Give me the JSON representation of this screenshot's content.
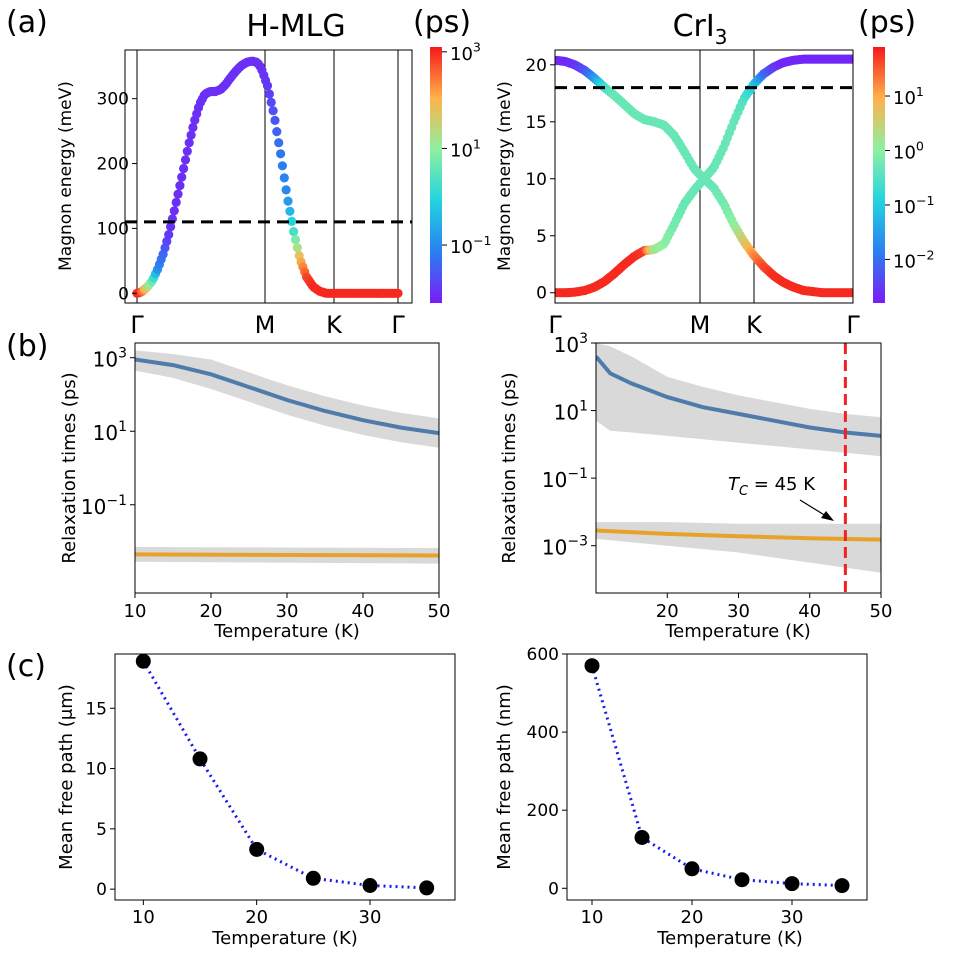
{
  "panel_labels": {
    "a": "(a)",
    "b": "(b)",
    "c": "(c)"
  },
  "colorbar_units": {
    "left": "(ps)",
    "right": "(ps)"
  },
  "colors": {
    "blue_series": "#4f7bab",
    "orange_series": "#e8a22c",
    "band": "#c9c9c9",
    "tc_line": "#ee2222",
    "mfp_line": "#1a1aee",
    "mfp_marker": "#000000",
    "dashed": "#000000"
  },
  "chart_data": [
    {
      "id": "a-left",
      "type": "scatter",
      "title": "H-MLG",
      "xlabel": "",
      "ylabel": "Magnon energy (meV)",
      "ylim": [
        -15,
        375
      ],
      "xticks": [
        "Γ",
        "M",
        "K",
        "Γ"
      ],
      "yticks": [
        0,
        100,
        200,
        300
      ],
      "dashed_line_y": 110,
      "colorbar": {
        "scale": "log",
        "label": "(ps)",
        "ticks": [
          "10^3",
          "10^1",
          "10^-1"
        ],
        "min_exp": -2.2,
        "max_exp": 3.1
      },
      "series": [
        {
          "name": "magnon band",
          "x": [
            0,
            0.02,
            0.04,
            0.08,
            0.12,
            0.16,
            0.2,
            0.24,
            0.28,
            0.32,
            0.36,
            0.4,
            0.44,
            0.48,
            0.52,
            0.56,
            0.6,
            0.64,
            0.68,
            0.72,
            0.76,
            0.8,
            0.84,
            0.88,
            0.92,
            0.95,
            1.0,
            1.05,
            1.1,
            1.15,
            1.2,
            1.25,
            1.3,
            1.35,
            1.4,
            1.45,
            1.5,
            1.55,
            1.58,
            1.62,
            1.66,
            1.7,
            1.74,
            1.78,
            1.82,
            1.86,
            1.9,
            1.93,
            1.96,
            1.99,
            2.0
          ],
          "y": [
            0,
            1,
            3,
            10,
            20,
            38,
            60,
            88,
            122,
            158,
            195,
            232,
            265,
            292,
            307,
            311,
            311,
            314,
            322,
            333,
            343,
            351,
            356,
            358,
            356,
            348,
            320,
            275,
            215,
            150,
            95,
            52,
            25,
            10,
            3,
            0,
            0,
            0,
            0,
            0,
            0,
            0,
            0,
            0,
            0,
            0,
            0,
            0,
            0,
            0,
            0
          ],
          "log_tau": [
            3,
            3,
            2.5,
            1.5,
            0.5,
            -1,
            -1.4,
            -1.9,
            -2,
            -2,
            -2,
            -2,
            -2,
            -2,
            -2,
            -2,
            -2,
            -2,
            -2,
            -2,
            -2,
            -2,
            -2,
            -2,
            -2,
            -2,
            -1.9,
            -1.6,
            -1.2,
            -1.0,
            0.3,
            2,
            2.8,
            3,
            3,
            3,
            3,
            3,
            3,
            3,
            3,
            3,
            3,
            3,
            3,
            3,
            3,
            3,
            3,
            3,
            3
          ]
        }
      ]
    },
    {
      "id": "a-right",
      "type": "scatter",
      "title": "CrI",
      "title_sub": "3",
      "xlabel": "",
      "ylabel": "Magnon energy (meV)",
      "ylim": [
        -0.9,
        21.3
      ],
      "xticks": [
        "Γ",
        "M",
        "K",
        "Γ"
      ],
      "yticks": [
        0,
        5,
        10,
        15,
        20
      ],
      "dashed_line_y": 18,
      "colorbar": {
        "scale": "log",
        "label": "(ps)",
        "ticks": [
          "10^1",
          "10^0",
          "10^-1",
          "10^-2"
        ],
        "min_exp": -2.8,
        "max_exp": 1.9
      },
      "series": [
        {
          "name": "upper branch",
          "x": [
            0,
            0.1,
            0.2,
            0.3,
            0.4,
            0.5,
            0.6,
            0.7,
            0.8,
            0.9,
            1.0,
            1.1,
            1.2,
            1.3,
            1.4,
            1.5,
            1.6,
            1.7,
            1.8,
            1.9,
            2.0,
            2.1,
            2.2,
            2.3,
            2.4,
            2.5,
            2.6,
            2.7,
            2.8,
            2.9,
            3.0
          ],
          "y": [
            20.4,
            20.3,
            20.0,
            19.5,
            18.8,
            18.0,
            17.3,
            16.5,
            15.7,
            15.2,
            15.0,
            14.7,
            13.8,
            12.4,
            10.9,
            10.0,
            9.2,
            7.8,
            6.0,
            4.5,
            3.3,
            2.3,
            1.5,
            0.9,
            0.5,
            0.2,
            0.1,
            0,
            0,
            0,
            0
          ],
          "log_tau": [
            -2.7,
            -2.7,
            -2.6,
            -2.3,
            -1.6,
            -0.6,
            -0.3,
            -0.3,
            -0.3,
            -0.3,
            -0.3,
            -0.3,
            -0.3,
            -0.3,
            -0.3,
            -0.3,
            -0.3,
            -0.2,
            0,
            0.6,
            1.2,
            1.6,
            1.8,
            1.8,
            1.8,
            1.8,
            1.8,
            1.8,
            1.8,
            1.8,
            1.8
          ]
        },
        {
          "name": "lower branch",
          "x": [
            0,
            0.1,
            0.2,
            0.3,
            0.4,
            0.5,
            0.6,
            0.7,
            0.8,
            0.9,
            1.0,
            1.1,
            1.2,
            1.3,
            1.4,
            1.5,
            1.6,
            1.7,
            1.8,
            1.9,
            2.0,
            2.1,
            2.2,
            2.3,
            2.4,
            2.5,
            2.6,
            2.7,
            2.8,
            2.9,
            3.0
          ],
          "y": [
            0,
            0,
            0.05,
            0.2,
            0.5,
            1.0,
            1.7,
            2.5,
            3.2,
            3.7,
            3.8,
            4.3,
            6.0,
            7.8,
            9.0,
            10.0,
            11.0,
            12.8,
            15.0,
            17.0,
            18.3,
            19.2,
            19.8,
            20.2,
            20.4,
            20.5,
            20.5,
            20.5,
            20.5,
            20.5,
            20.5
          ],
          "log_tau": [
            1.8,
            1.8,
            1.8,
            1.8,
            1.8,
            1.8,
            1.8,
            1.8,
            1.8,
            1.7,
            0.2,
            0,
            -0.2,
            -0.3,
            -0.3,
            -0.3,
            -0.3,
            -0.3,
            -0.3,
            -0.5,
            -1.0,
            -2.0,
            -2.5,
            -2.7,
            -2.7,
            -2.7,
            -2.7,
            -2.7,
            -2.7,
            -2.7,
            -2.7
          ]
        }
      ]
    },
    {
      "id": "b-left",
      "type": "line",
      "xlabel": "Temperature (K)",
      "ylabel": "Relaxation times (ps)",
      "xlim": [
        10,
        50
      ],
      "ylim_log10": [
        -3.4,
        3.4
      ],
      "xticks": [
        10,
        20,
        30,
        40,
        50
      ],
      "yticks": [
        "10^3",
        "10^1",
        "10^-1"
      ],
      "series": [
        {
          "name": "blue",
          "x": [
            10,
            15,
            20,
            25,
            30,
            35,
            40,
            45,
            50
          ],
          "log_y": [
            2.95,
            2.8,
            2.55,
            2.2,
            1.85,
            1.55,
            1.3,
            1.1,
            0.95
          ],
          "log_lo": [
            2.65,
            2.45,
            2.15,
            1.8,
            1.45,
            1.15,
            0.9,
            0.7,
            0.55
          ],
          "log_hi": [
            3.2,
            3.1,
            2.95,
            2.6,
            2.25,
            1.95,
            1.7,
            1.5,
            1.35
          ]
        },
        {
          "name": "orange",
          "x": [
            10,
            50
          ],
          "log_y": [
            -2.35,
            -2.38
          ],
          "log_lo": [
            -2.55,
            -2.6
          ],
          "log_hi": [
            -2.15,
            -2.18
          ]
        }
      ]
    },
    {
      "id": "b-right",
      "type": "line",
      "xlabel": "Temperature (K)",
      "ylabel": "Relaxation times (ps)",
      "xlim": [
        10,
        50
      ],
      "ylim_log10": [
        -4.4,
        3.0
      ],
      "xticks": [
        20,
        30,
        40,
        50
      ],
      "yticks": [
        "10^3",
        "10^1",
        "10^-1",
        "10^-3"
      ],
      "annotation": {
        "text": "T_C = 45 K",
        "x": 45
      },
      "vline_x": 45,
      "series": [
        {
          "name": "blue",
          "x": [
            10,
            12,
            15,
            20,
            25,
            30,
            35,
            40,
            45,
            50
          ],
          "log_y": [
            2.6,
            2.1,
            1.8,
            1.4,
            1.1,
            0.9,
            0.7,
            0.5,
            0.35,
            0.25
          ],
          "log_lo": [
            0.7,
            0.4,
            0.35,
            0.25,
            0.15,
            0.05,
            -0.05,
            -0.15,
            -0.25,
            -0.35
          ],
          "log_hi": [
            3.0,
            2.9,
            2.6,
            2.0,
            1.7,
            1.45,
            1.25,
            1.05,
            0.9,
            0.8
          ]
        },
        {
          "name": "orange",
          "x": [
            10,
            20,
            30,
            40,
            50
          ],
          "log_y": [
            -2.55,
            -2.65,
            -2.72,
            -2.78,
            -2.82
          ],
          "log_lo": [
            -2.8,
            -3.0,
            -3.2,
            -3.5,
            -3.8
          ],
          "log_hi": [
            -2.3,
            -2.3,
            -2.35,
            -2.35,
            -2.35
          ]
        }
      ]
    },
    {
      "id": "c-left",
      "type": "line",
      "xlabel": "Temperature (K)",
      "ylabel": "Mean free path (μm)",
      "xlim": [
        7.5,
        37.5
      ],
      "ylim": [
        -0.9,
        19.5
      ],
      "xticks": [
        10,
        20,
        30
      ],
      "yticks": [
        0,
        5,
        10,
        15
      ],
      "series": [
        {
          "name": "mfp",
          "x": [
            10,
            15,
            20,
            25,
            30,
            35
          ],
          "y": [
            18.9,
            10.8,
            3.3,
            0.9,
            0.3,
            0.1
          ]
        }
      ]
    },
    {
      "id": "c-right",
      "type": "line",
      "xlabel": "Temperature (K)",
      "ylabel": "Mean free path (nm)",
      "xlim": [
        7.5,
        37.5
      ],
      "ylim": [
        -30,
        600
      ],
      "xticks": [
        10,
        20,
        30
      ],
      "yticks": [
        0,
        200,
        400,
        600
      ],
      "series": [
        {
          "name": "mfp",
          "x": [
            10,
            15,
            20,
            25,
            30,
            35
          ],
          "y": [
            570,
            130,
            50,
            22,
            12,
            7
          ]
        }
      ]
    }
  ]
}
